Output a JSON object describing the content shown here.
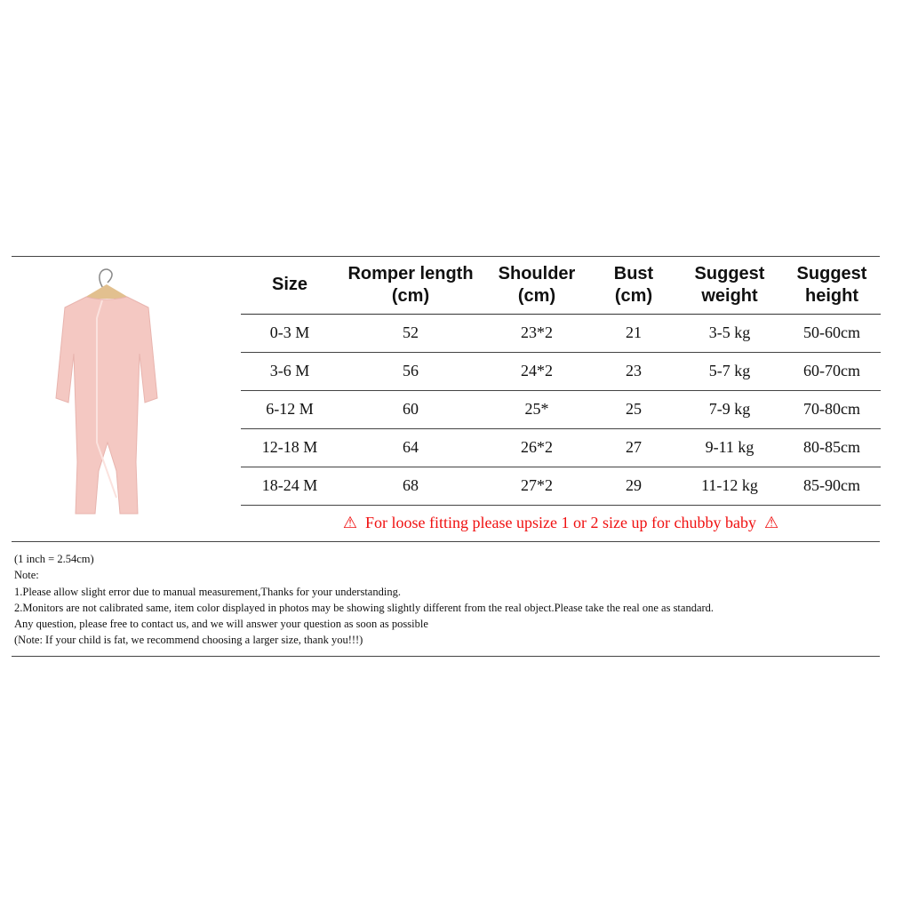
{
  "headers": [
    "Size",
    "Romper length\n(cm)",
    "Shoulder\n(cm)",
    "Bust\n(cm)",
    "Suggest\nweight",
    "Suggest\nheight"
  ],
  "header_lines": [
    [
      "Size"
    ],
    [
      "Romper length",
      "(cm)"
    ],
    [
      "Shoulder",
      "(cm)"
    ],
    [
      "Bust",
      "(cm)"
    ],
    [
      "Suggest",
      "weight"
    ],
    [
      "Suggest",
      "height"
    ]
  ],
  "rows": [
    [
      "0-3 M",
      "52",
      "23*2",
      "21",
      "3-5 kg",
      "50-60cm"
    ],
    [
      "3-6 M",
      "56",
      "24*2",
      "23",
      "5-7 kg",
      "60-70cm"
    ],
    [
      "6-12 M",
      "60",
      "25*",
      "25",
      "7-9 kg",
      "70-80cm"
    ],
    [
      "12-18 M",
      "64",
      "26*2",
      "27",
      "9-11 kg",
      "80-85cm"
    ],
    [
      "18-24 M",
      "68",
      "27*2",
      "29",
      "11-12 kg",
      "85-90cm"
    ]
  ],
  "warning": {
    "icon": "warning-icon",
    "text": "For loose fitting please upsize 1 or 2 size up for chubby baby",
    "color": "#f01010"
  },
  "notes": [
    "(1 inch = 2.54cm)",
    "Note:",
    "1.Please allow slight error due to manual measurement,Thanks for your understanding.",
    "2.Monitors are not calibrated same, item color displayed in photos may be showing slightly different from the real object.Please take the real one as standard.",
    "Any question, please free to contact us, and we will answer your question as soon as possible",
    "(Note: If your child is fat, we recommend choosing a larger size, thank you!!!)"
  ],
  "product_color": "#f4c8c2"
}
